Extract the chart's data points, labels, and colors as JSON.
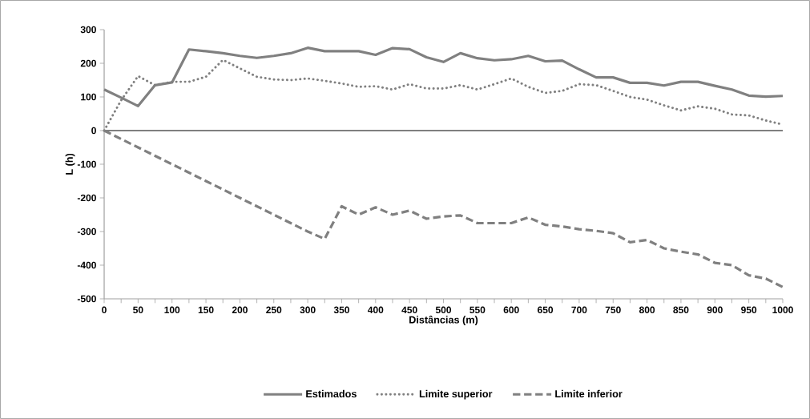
{
  "chart_data": {
    "type": "line",
    "xlabel": "Distâncias (m)",
    "ylabel": "L (h)",
    "x": [
      0,
      25,
      50,
      75,
      100,
      125,
      150,
      175,
      200,
      225,
      250,
      275,
      300,
      325,
      350,
      375,
      400,
      425,
      450,
      475,
      500,
      525,
      550,
      575,
      600,
      625,
      650,
      675,
      700,
      725,
      750,
      775,
      800,
      825,
      850,
      875,
      900,
      925,
      950,
      975,
      1000
    ],
    "series": [
      {
        "name": "Estimados",
        "color": "#808080",
        "line_style": "solid",
        "values": [
          122,
          98,
          73,
          135,
          143,
          241,
          236,
          230,
          222,
          216,
          222,
          230,
          246,
          236,
          236,
          236,
          225,
          245,
          242,
          218,
          204,
          230,
          215,
          209,
          212,
          222,
          206,
          208,
          182,
          158,
          158,
          142,
          142,
          134,
          145,
          145,
          133,
          122,
          104,
          101,
          103
        ]
      },
      {
        "name": "Limite superior",
        "color": "#808080",
        "line_style": "dotted",
        "values": [
          0,
          90,
          162,
          135,
          145,
          145,
          160,
          210,
          185,
          160,
          152,
          150,
          155,
          148,
          140,
          130,
          132,
          122,
          138,
          125,
          125,
          135,
          122,
          138,
          155,
          130,
          112,
          118,
          138,
          135,
          118,
          100,
          92,
          75,
          60,
          72,
          65,
          48,
          45,
          30,
          18
        ]
      },
      {
        "name": "Limite inferior",
        "color": "#808080",
        "line_style": "dashed",
        "values": [
          0,
          -25,
          -50,
          -75,
          -100,
          -125,
          -150,
          -175,
          -200,
          -225,
          -250,
          -275,
          -300,
          -322,
          -225,
          -250,
          -228,
          -250,
          -238,
          -262,
          -255,
          -252,
          -275,
          -275,
          -275,
          -258,
          -280,
          -285,
          -293,
          -298,
          -305,
          -332,
          -325,
          -350,
          -360,
          -368,
          -393,
          -400,
          -430,
          -440,
          -465
        ]
      }
    ],
    "xlim": [
      0,
      1000
    ],
    "xticks": [
      0,
      {
        "value": 25,
        "label": null
      },
      50,
      {
        "value": 75,
        "label": null
      },
      100,
      {
        "value": 125,
        "label": null
      },
      150,
      {
        "value": 175,
        "label": null
      },
      200,
      {
        "value": 225,
        "label": null
      },
      250,
      {
        "value": 275,
        "label": null
      },
      300,
      {
        "value": 325,
        "label": null
      },
      350,
      {
        "value": 375,
        "label": null
      },
      400,
      {
        "value": 425,
        "label": null
      },
      450,
      {
        "value": 475,
        "label": null
      },
      500,
      {
        "value": 525,
        "label": null
      },
      550,
      {
        "value": 575,
        "label": null
      },
      600,
      {
        "value": 625,
        "label": null
      },
      650,
      {
        "value": 675,
        "label": null
      },
      700,
      {
        "value": 725,
        "label": null
      },
      750,
      {
        "value": 775,
        "label": null
      },
      800,
      {
        "value": 825,
        "label": null
      },
      850,
      {
        "value": 875,
        "label": null
      },
      900,
      {
        "value": 925,
        "label": null
      },
      950,
      {
        "value": 975,
        "label": null
      },
      1000
    ],
    "ylim": [
      -500,
      300
    ],
    "yticks": [
      -500,
      -400,
      -300,
      -200,
      -100,
      0,
      100,
      200,
      300
    ],
    "ref_lines": [
      {
        "axis": "y",
        "value": 0,
        "color": "#000000"
      }
    ],
    "legend": "bottom",
    "grid": false
  }
}
